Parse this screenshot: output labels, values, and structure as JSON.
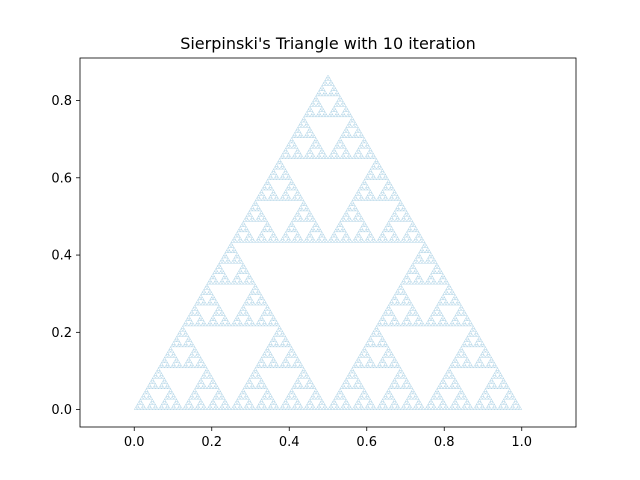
{
  "chart_data": {
    "type": "line",
    "title": "Sierpinski's Triangle with 10 iteration",
    "xlabel": "",
    "ylabel": "",
    "iterations": 10,
    "vertices": [
      [
        0.0,
        0.0
      ],
      [
        1.0,
        0.0
      ],
      [
        0.5,
        0.866
      ]
    ],
    "xlim": [
      -0.14,
      1.14
    ],
    "ylim": [
      -0.045,
      0.91
    ],
    "xticks": [
      0.0,
      0.2,
      0.4,
      0.6,
      0.8,
      1.0
    ],
    "xtick_labels": [
      "0.0",
      "0.2",
      "0.4",
      "0.6",
      "0.8",
      "1.0"
    ],
    "yticks": [
      0.0,
      0.2,
      0.4,
      0.6,
      0.8
    ],
    "ytick_labels": [
      "0.0",
      "0.2",
      "0.4",
      "0.6",
      "0.8"
    ],
    "grid": false,
    "line_color": "#a6cee3"
  }
}
